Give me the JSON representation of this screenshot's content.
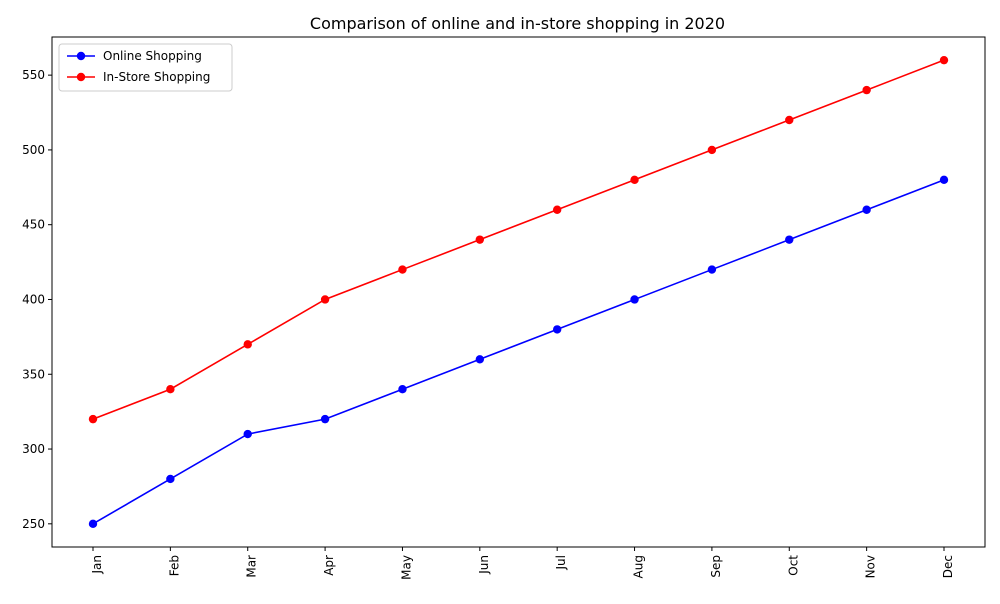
{
  "chart_data": {
    "type": "line",
    "title": "Comparison of online and in-store shopping in 2020",
    "xlabel": "",
    "ylabel": "",
    "categories": [
      "Jan",
      "Feb",
      "Mar",
      "Apr",
      "May",
      "Jun",
      "Jul",
      "Aug",
      "Sep",
      "Oct",
      "Nov",
      "Dec"
    ],
    "series": [
      {
        "name": "Online Shopping",
        "color": "#0000ff",
        "marker": "circle",
        "values": [
          250,
          280,
          310,
          320,
          340,
          360,
          380,
          400,
          420,
          440,
          460,
          480
        ]
      },
      {
        "name": "In-Store Shopping",
        "color": "#ff0000",
        "marker": "circle",
        "values": [
          320,
          340,
          370,
          400,
          420,
          440,
          460,
          480,
          500,
          520,
          540,
          560
        ]
      }
    ],
    "ylim": [
      234.5,
      575.5
    ],
    "yticks": [
      250,
      300,
      350,
      400,
      450,
      500,
      550
    ],
    "ytick_labels": [
      "250",
      "300",
      "350",
      "400",
      "450",
      "500",
      "550"
    ],
    "xtick_rotation": 90,
    "grid": false,
    "legend_position": "upper-left"
  }
}
